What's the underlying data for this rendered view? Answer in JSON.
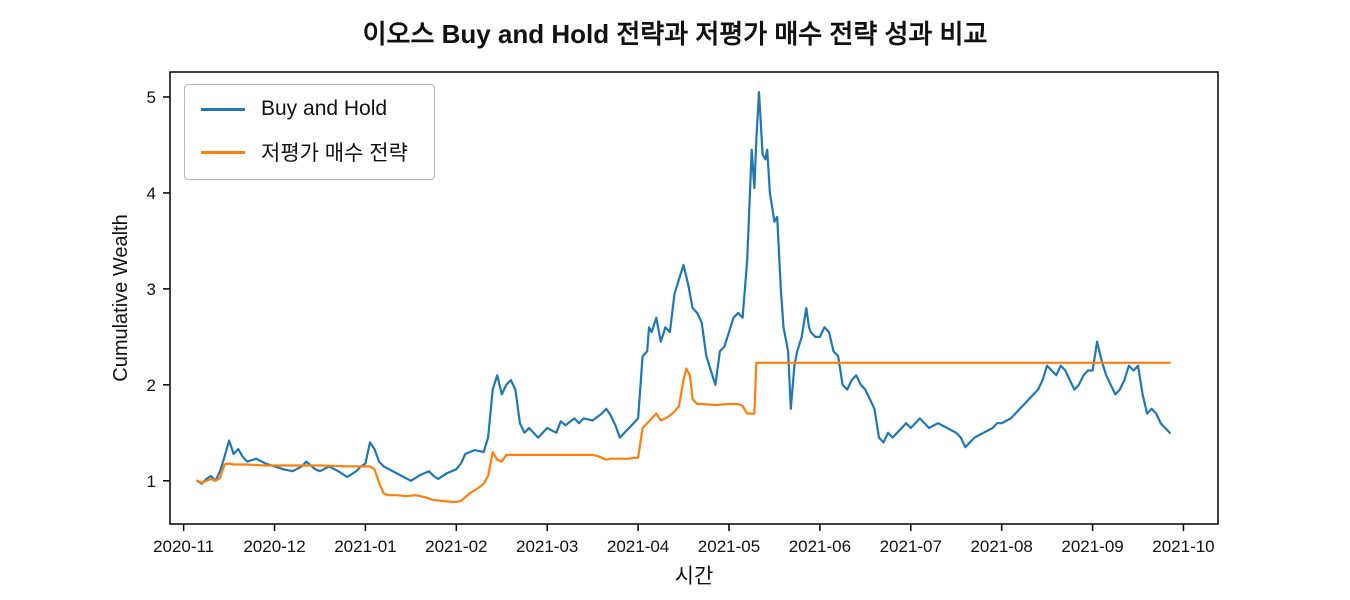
{
  "chart_data": {
    "type": "line",
    "title": "이오스 Buy and Hold 전략과 저평가 매수 전략 성과 비교",
    "xlabel": "시간",
    "ylabel": "Cumulative Wealth",
    "grid": false,
    "legend_position": "upper left",
    "x_unit": "months since 2020-11 (0 = 2020-11, 11 = 2021-10)",
    "xlim": [
      -0.15,
      11.38
    ],
    "ylim": [
      0.55,
      5.26
    ],
    "x_ticks": [
      "2020-11",
      "2020-12",
      "2021-01",
      "2021-02",
      "2021-03",
      "2021-04",
      "2021-05",
      "2021-06",
      "2021-07",
      "2021-08",
      "2021-09",
      "2021-10"
    ],
    "y_ticks": [
      1,
      2,
      3,
      4,
      5
    ],
    "axis_color": "#000000",
    "series": [
      {
        "name": "Buy and Hold",
        "color": "#1f77b4",
        "points": [
          [
            0.15,
            1.0
          ],
          [
            0.2,
            0.97
          ],
          [
            0.25,
            1.02
          ],
          [
            0.3,
            1.05
          ],
          [
            0.35,
            1.0
          ],
          [
            0.4,
            1.1
          ],
          [
            0.45,
            1.25
          ],
          [
            0.5,
            1.42
          ],
          [
            0.55,
            1.28
          ],
          [
            0.6,
            1.33
          ],
          [
            0.65,
            1.25
          ],
          [
            0.7,
            1.2
          ],
          [
            0.8,
            1.23
          ],
          [
            0.9,
            1.18
          ],
          [
            1.0,
            1.15
          ],
          [
            1.1,
            1.12
          ],
          [
            1.2,
            1.1
          ],
          [
            1.3,
            1.15
          ],
          [
            1.35,
            1.2
          ],
          [
            1.45,
            1.12
          ],
          [
            1.5,
            1.1
          ],
          [
            1.6,
            1.15
          ],
          [
            1.7,
            1.1
          ],
          [
            1.8,
            1.04
          ],
          [
            1.9,
            1.1
          ],
          [
            1.95,
            1.15
          ],
          [
            2.0,
            1.18
          ],
          [
            2.05,
            1.4
          ],
          [
            2.1,
            1.33
          ],
          [
            2.15,
            1.2
          ],
          [
            2.2,
            1.15
          ],
          [
            2.3,
            1.1
          ],
          [
            2.4,
            1.05
          ],
          [
            2.5,
            1.0
          ],
          [
            2.6,
            1.06
          ],
          [
            2.7,
            1.1
          ],
          [
            2.75,
            1.05
          ],
          [
            2.8,
            1.02
          ],
          [
            2.9,
            1.08
          ],
          [
            3.0,
            1.12
          ],
          [
            3.05,
            1.18
          ],
          [
            3.1,
            1.28
          ],
          [
            3.2,
            1.32
          ],
          [
            3.3,
            1.3
          ],
          [
            3.35,
            1.45
          ],
          [
            3.4,
            1.95
          ],
          [
            3.45,
            2.1
          ],
          [
            3.5,
            1.9
          ],
          [
            3.55,
            2.0
          ],
          [
            3.6,
            2.05
          ],
          [
            3.65,
            1.95
          ],
          [
            3.7,
            1.6
          ],
          [
            3.75,
            1.5
          ],
          [
            3.8,
            1.55
          ],
          [
            3.85,
            1.5
          ],
          [
            3.9,
            1.45
          ],
          [
            3.95,
            1.5
          ],
          [
            4.0,
            1.55
          ],
          [
            4.1,
            1.5
          ],
          [
            4.15,
            1.62
          ],
          [
            4.2,
            1.58
          ],
          [
            4.3,
            1.65
          ],
          [
            4.35,
            1.6
          ],
          [
            4.4,
            1.65
          ],
          [
            4.5,
            1.63
          ],
          [
            4.6,
            1.7
          ],
          [
            4.65,
            1.75
          ],
          [
            4.7,
            1.68
          ],
          [
            4.75,
            1.58
          ],
          [
            4.8,
            1.45
          ],
          [
            4.9,
            1.55
          ],
          [
            4.95,
            1.6
          ],
          [
            5.0,
            1.65
          ],
          [
            5.05,
            2.3
          ],
          [
            5.1,
            2.35
          ],
          [
            5.12,
            2.6
          ],
          [
            5.15,
            2.55
          ],
          [
            5.2,
            2.7
          ],
          [
            5.25,
            2.45
          ],
          [
            5.3,
            2.6
          ],
          [
            5.35,
            2.55
          ],
          [
            5.4,
            2.95
          ],
          [
            5.45,
            3.1
          ],
          [
            5.5,
            3.25
          ],
          [
            5.55,
            3.05
          ],
          [
            5.6,
            2.8
          ],
          [
            5.65,
            2.75
          ],
          [
            5.7,
            2.65
          ],
          [
            5.75,
            2.3
          ],
          [
            5.8,
            2.15
          ],
          [
            5.85,
            2.0
          ],
          [
            5.9,
            2.35
          ],
          [
            5.95,
            2.4
          ],
          [
            6.0,
            2.55
          ],
          [
            6.05,
            2.7
          ],
          [
            6.1,
            2.75
          ],
          [
            6.15,
            2.7
          ],
          [
            6.2,
            3.3
          ],
          [
            6.25,
            4.45
          ],
          [
            6.28,
            4.05
          ],
          [
            6.3,
            4.55
          ],
          [
            6.33,
            5.05
          ],
          [
            6.37,
            4.4
          ],
          [
            6.4,
            4.35
          ],
          [
            6.42,
            4.45
          ],
          [
            6.45,
            4.0
          ],
          [
            6.5,
            3.7
          ],
          [
            6.53,
            3.75
          ],
          [
            6.57,
            3.0
          ],
          [
            6.6,
            2.6
          ],
          [
            6.63,
            2.45
          ],
          [
            6.65,
            2.35
          ],
          [
            6.68,
            1.75
          ],
          [
            6.72,
            2.2
          ],
          [
            6.75,
            2.35
          ],
          [
            6.8,
            2.5
          ],
          [
            6.85,
            2.8
          ],
          [
            6.88,
            2.6
          ],
          [
            6.9,
            2.55
          ],
          [
            6.95,
            2.5
          ],
          [
            7.0,
            2.5
          ],
          [
            7.05,
            2.6
          ],
          [
            7.1,
            2.55
          ],
          [
            7.15,
            2.35
          ],
          [
            7.2,
            2.3
          ],
          [
            7.25,
            2.0
          ],
          [
            7.3,
            1.95
          ],
          [
            7.35,
            2.05
          ],
          [
            7.4,
            2.1
          ],
          [
            7.45,
            2.0
          ],
          [
            7.5,
            1.95
          ],
          [
            7.55,
            1.85
          ],
          [
            7.6,
            1.75
          ],
          [
            7.65,
            1.45
          ],
          [
            7.7,
            1.4
          ],
          [
            7.75,
            1.5
          ],
          [
            7.8,
            1.45
          ],
          [
            7.85,
            1.5
          ],
          [
            7.9,
            1.55
          ],
          [
            7.95,
            1.6
          ],
          [
            8.0,
            1.55
          ],
          [
            8.1,
            1.65
          ],
          [
            8.2,
            1.55
          ],
          [
            8.3,
            1.6
          ],
          [
            8.4,
            1.55
          ],
          [
            8.5,
            1.5
          ],
          [
            8.55,
            1.45
          ],
          [
            8.6,
            1.35
          ],
          [
            8.7,
            1.45
          ],
          [
            8.8,
            1.5
          ],
          [
            8.9,
            1.55
          ],
          [
            8.95,
            1.6
          ],
          [
            9.0,
            1.6
          ],
          [
            9.1,
            1.65
          ],
          [
            9.2,
            1.75
          ],
          [
            9.3,
            1.85
          ],
          [
            9.4,
            1.95
          ],
          [
            9.45,
            2.05
          ],
          [
            9.5,
            2.2
          ],
          [
            9.55,
            2.15
          ],
          [
            9.6,
            2.1
          ],
          [
            9.65,
            2.2
          ],
          [
            9.7,
            2.15
          ],
          [
            9.75,
            2.05
          ],
          [
            9.8,
            1.95
          ],
          [
            9.85,
            2.0
          ],
          [
            9.9,
            2.1
          ],
          [
            9.95,
            2.15
          ],
          [
            10.0,
            2.15
          ],
          [
            10.05,
            2.45
          ],
          [
            10.1,
            2.25
          ],
          [
            10.15,
            2.1
          ],
          [
            10.2,
            2.0
          ],
          [
            10.25,
            1.9
          ],
          [
            10.3,
            1.95
          ],
          [
            10.35,
            2.05
          ],
          [
            10.4,
            2.2
          ],
          [
            10.45,
            2.15
          ],
          [
            10.5,
            2.2
          ],
          [
            10.55,
            1.9
          ],
          [
            10.6,
            1.7
          ],
          [
            10.65,
            1.75
          ],
          [
            10.7,
            1.7
          ],
          [
            10.75,
            1.6
          ],
          [
            10.8,
            1.55
          ],
          [
            10.85,
            1.5
          ]
        ]
      },
      {
        "name": "저평가 매수 전략",
        "color": "#ff7f0e",
        "points": [
          [
            0.15,
            1.0
          ],
          [
            0.2,
            0.98
          ],
          [
            0.25,
            1.0
          ],
          [
            0.3,
            1.02
          ],
          [
            0.35,
            1.0
          ],
          [
            0.4,
            1.03
          ],
          [
            0.45,
            1.17
          ],
          [
            0.5,
            1.18
          ],
          [
            0.55,
            1.17
          ],
          [
            0.7,
            1.17
          ],
          [
            0.9,
            1.16
          ],
          [
            1.2,
            1.16
          ],
          [
            1.5,
            1.16
          ],
          [
            1.8,
            1.15
          ],
          [
            2.05,
            1.15
          ],
          [
            2.1,
            1.12
          ],
          [
            2.15,
            0.98
          ],
          [
            2.2,
            0.87
          ],
          [
            2.25,
            0.85
          ],
          [
            2.35,
            0.85
          ],
          [
            2.45,
            0.84
          ],
          [
            2.55,
            0.85
          ],
          [
            2.65,
            0.83
          ],
          [
            2.75,
            0.8
          ],
          [
            2.85,
            0.79
          ],
          [
            2.95,
            0.78
          ],
          [
            3.0,
            0.78
          ],
          [
            3.05,
            0.79
          ],
          [
            3.1,
            0.83
          ],
          [
            3.15,
            0.87
          ],
          [
            3.2,
            0.9
          ],
          [
            3.25,
            0.93
          ],
          [
            3.3,
            0.97
          ],
          [
            3.35,
            1.05
          ],
          [
            3.4,
            1.3
          ],
          [
            3.45,
            1.22
          ],
          [
            3.5,
            1.2
          ],
          [
            3.55,
            1.27
          ],
          [
            3.6,
            1.27
          ],
          [
            3.8,
            1.27
          ],
          [
            4.2,
            1.27
          ],
          [
            4.5,
            1.27
          ],
          [
            4.55,
            1.26
          ],
          [
            4.6,
            1.24
          ],
          [
            4.65,
            1.22
          ],
          [
            4.7,
            1.23
          ],
          [
            4.8,
            1.23
          ],
          [
            4.9,
            1.23
          ],
          [
            4.95,
            1.24
          ],
          [
            5.0,
            1.24
          ],
          [
            5.05,
            1.55
          ],
          [
            5.1,
            1.6
          ],
          [
            5.15,
            1.65
          ],
          [
            5.2,
            1.7
          ],
          [
            5.25,
            1.63
          ],
          [
            5.3,
            1.65
          ],
          [
            5.35,
            1.68
          ],
          [
            5.4,
            1.72
          ],
          [
            5.45,
            1.78
          ],
          [
            5.5,
            2.05
          ],
          [
            5.53,
            2.17
          ],
          [
            5.57,
            2.1
          ],
          [
            5.6,
            1.85
          ],
          [
            5.65,
            1.8
          ],
          [
            5.7,
            1.8
          ],
          [
            5.85,
            1.79
          ],
          [
            6.0,
            1.8
          ],
          [
            6.1,
            1.8
          ],
          [
            6.15,
            1.78
          ],
          [
            6.2,
            1.7
          ],
          [
            6.28,
            1.7
          ],
          [
            6.3,
            2.23
          ],
          [
            6.5,
            2.23
          ],
          [
            7.0,
            2.23
          ],
          [
            8.0,
            2.23
          ],
          [
            9.0,
            2.23
          ],
          [
            10.0,
            2.23
          ],
          [
            10.85,
            2.23
          ]
        ]
      }
    ]
  }
}
